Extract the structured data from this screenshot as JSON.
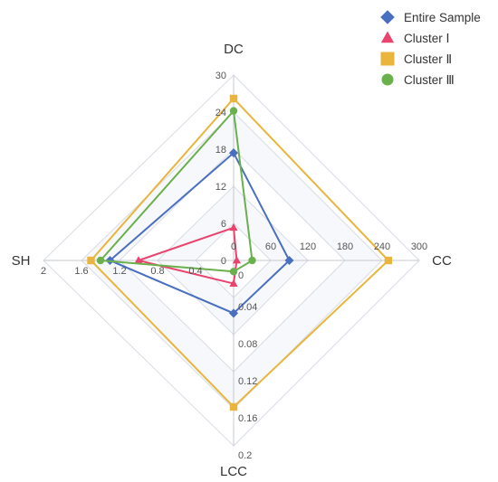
{
  "chart_data": {
    "type": "radar",
    "axes": [
      {
        "label": "DC",
        "max": 30,
        "ticks": [
          "0",
          "6",
          "12",
          "18",
          "24",
          "30"
        ]
      },
      {
        "label": "CC",
        "max": 300,
        "ticks": [
          "0",
          "60",
          "120",
          "180",
          "240",
          "300"
        ]
      },
      {
        "label": "LCC",
        "max": 0.2,
        "ticks": [
          "0",
          "0.04",
          "0.08",
          "0.12",
          "0.16",
          "0.2"
        ]
      },
      {
        "label": "SH",
        "max": 2,
        "ticks": [
          "0",
          "0.4",
          "0.8",
          "1.2",
          "1.6",
          "2"
        ]
      }
    ],
    "series": [
      {
        "name": "Entire Sample",
        "marker": "diamond",
        "color": "#4a6fc1",
        "values": [
          17.4,
          90,
          0.057,
          1.3
        ]
      },
      {
        "name": "Cluster Ⅰ",
        "marker": "triangle",
        "color": "#e9436e",
        "values": [
          5.3,
          5,
          0.025,
          1.0
        ]
      },
      {
        "name": "Cluster Ⅱ",
        "marker": "square",
        "color": "#e9b53c",
        "values": [
          26.2,
          250,
          0.158,
          1.5
        ]
      },
      {
        "name": "Cluster Ⅲ",
        "marker": "circle",
        "color": "#6ab04c",
        "values": [
          24.2,
          30,
          0.012,
          1.4
        ]
      }
    ],
    "grid": true,
    "legend_position": "top-right"
  }
}
